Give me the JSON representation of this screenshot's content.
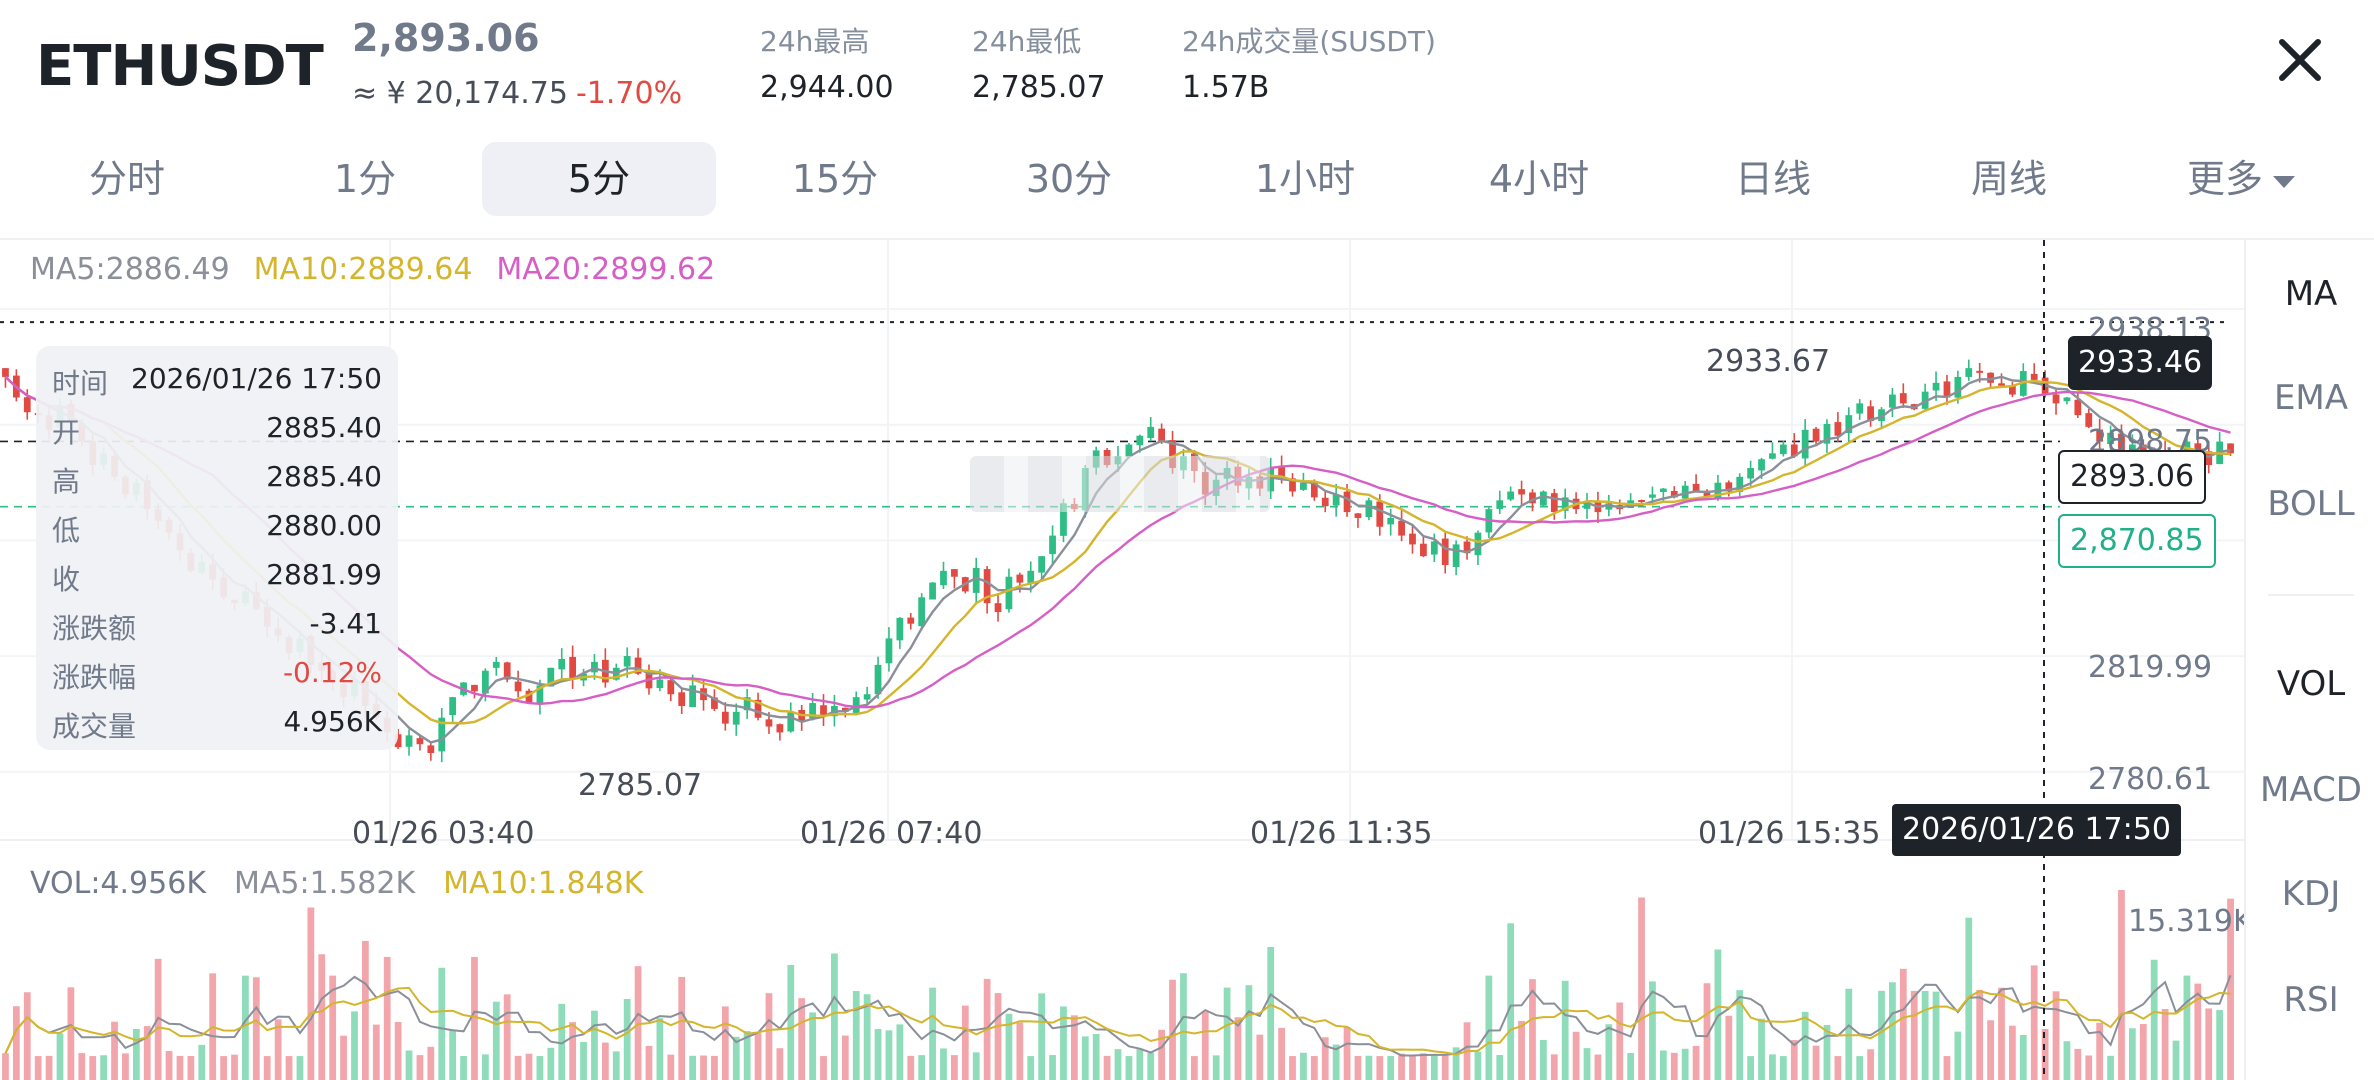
{
  "header": {
    "symbol": "ETHUSDT",
    "price": "2,893.06",
    "cny_price": "≈ ¥ 20,174.75",
    "change_pct": "-1.70%",
    "stats": [
      {
        "label": "24h最高",
        "value": "2,944.00"
      },
      {
        "label": "24h最低",
        "value": "2,785.07"
      },
      {
        "label": "24h成交量(SUSDT)",
        "value": "1.57B"
      }
    ],
    "close_glyph": "✕"
  },
  "intervals": {
    "tabs": [
      "分时",
      "1分",
      "5分",
      "15分",
      "30分",
      "1小时",
      "4小时",
      "日线",
      "周线",
      "更多"
    ],
    "active_index": 2
  },
  "ma_legend": {
    "ma5": "MA5:2886.49",
    "ma10": "MA10:2889.64",
    "ma20": "MA20:2899.62"
  },
  "tooltip": {
    "rows": [
      {
        "k": "时间",
        "v": "2026/01/26 17:50"
      },
      {
        "k": "开",
        "v": "2885.40"
      },
      {
        "k": "高",
        "v": "2885.40"
      },
      {
        "k": "低",
        "v": "2880.00"
      },
      {
        "k": "收",
        "v": "2881.99"
      },
      {
        "k": "涨跌额",
        "v": "-3.41"
      },
      {
        "k": "涨跌幅",
        "v": "-0.12%"
      },
      {
        "k": "成交量",
        "v": "4.956K"
      }
    ]
  },
  "price_tags": {
    "high": "2933.46",
    "current": "2893.06",
    "mark": "2,870.85",
    "cross_time": "2026/01/26 17:50"
  },
  "annotations": {
    "max_label": "2933.67",
    "min_label": "2785.07"
  },
  "volume_legend": {
    "vol": "VOL:4.956K",
    "ma5": "MA5:1.582K",
    "ma10": "MA10:1.848K",
    "max_label": "15.319K"
  },
  "indicators": {
    "main": [
      "MA",
      "EMA",
      "BOLL"
    ],
    "sub": [
      "VOL",
      "MACD",
      "KDJ",
      "RSI"
    ],
    "active_main": "MA",
    "active_sub": "VOL"
  },
  "colors": {
    "up": "#2ebd85",
    "down": "#e14a42",
    "ma5": "#8a8f99",
    "ma10": "#d4b52c",
    "ma20": "#d65fc6",
    "up_vol": "#8fdcba",
    "down_vol": "#f2a6ab"
  },
  "chart_data": {
    "type": "candlestick",
    "x_tick_labels": [
      "01/26 03:40",
      "01/26 07:40",
      "01/26 11:35",
      "01/26 15:35"
    ],
    "y_tick_labels": [
      "2938.13",
      "2898.75",
      "2819.99",
      "2780.61"
    ],
    "y_range": [
      2771,
      2948
    ],
    "ma_periods": [
      5,
      10,
      20
    ],
    "candle_closes": [
      2915,
      2908,
      2903,
      2902,
      2897,
      2905,
      2900,
      2893,
      2885,
      2889,
      2881,
      2875,
      2879,
      2870,
      2866,
      2862,
      2856,
      2849,
      2852,
      2846,
      2840,
      2838,
      2842,
      2836,
      2830,
      2827,
      2821,
      2826,
      2817,
      2815,
      2811,
      2806,
      2812,
      2803,
      2799,
      2794,
      2789,
      2793,
      2790,
      2787,
      2799,
      2806,
      2811,
      2808,
      2815,
      2818,
      2812,
      2808,
      2804,
      2810,
      2816,
      2819,
      2812,
      2814,
      2818,
      2811,
      2816,
      2820,
      2814,
      2809,
      2812,
      2807,
      2803,
      2810,
      2805,
      2802,
      2797,
      2801,
      2806,
      2799,
      2796,
      2794,
      2801,
      2798,
      2804,
      2800,
      2803,
      2801,
      2806,
      2807,
      2817,
      2826,
      2833,
      2831,
      2840,
      2845,
      2849,
      2847,
      2842,
      2850,
      2838,
      2835,
      2847,
      2845,
      2849,
      2854,
      2861,
      2872,
      2870,
      2884,
      2890,
      2885,
      2888,
      2892,
      2895,
      2898,
      2893,
      2884,
      2888,
      2883,
      2875,
      2880,
      2884,
      2878,
      2881,
      2877,
      2884,
      2881,
      2876,
      2879,
      2874,
      2871,
      2875,
      2869,
      2867,
      2873,
      2864,
      2867,
      2861,
      2858,
      2854,
      2859,
      2851,
      2858,
      2855,
      2862,
      2870,
      2873,
      2876,
      2875,
      2872,
      2876,
      2869,
      2874,
      2870,
      2872,
      2869,
      2872,
      2870,
      2873,
      2873,
      2875,
      2877,
      2874,
      2878,
      2876,
      2874,
      2879,
      2876,
      2881,
      2884,
      2887,
      2889,
      2892,
      2888,
      2897,
      2893,
      2899,
      2895,
      2902,
      2906,
      2900,
      2904,
      2909,
      2906,
      2904,
      2910,
      2913,
      2908,
      2915,
      2918,
      2917,
      2913,
      2912,
      2909,
      2917,
      2914,
      2909,
      2906,
      2908,
      2902,
      2898,
      2893,
      2896,
      2890,
      2892,
      2886,
      2889,
      2884,
      2887,
      2893,
      2890,
      2885,
      2893,
      2889
    ]
  },
  "volume_data": {
    "max": 15.319,
    "unit": "K",
    "last": 4.956
  }
}
